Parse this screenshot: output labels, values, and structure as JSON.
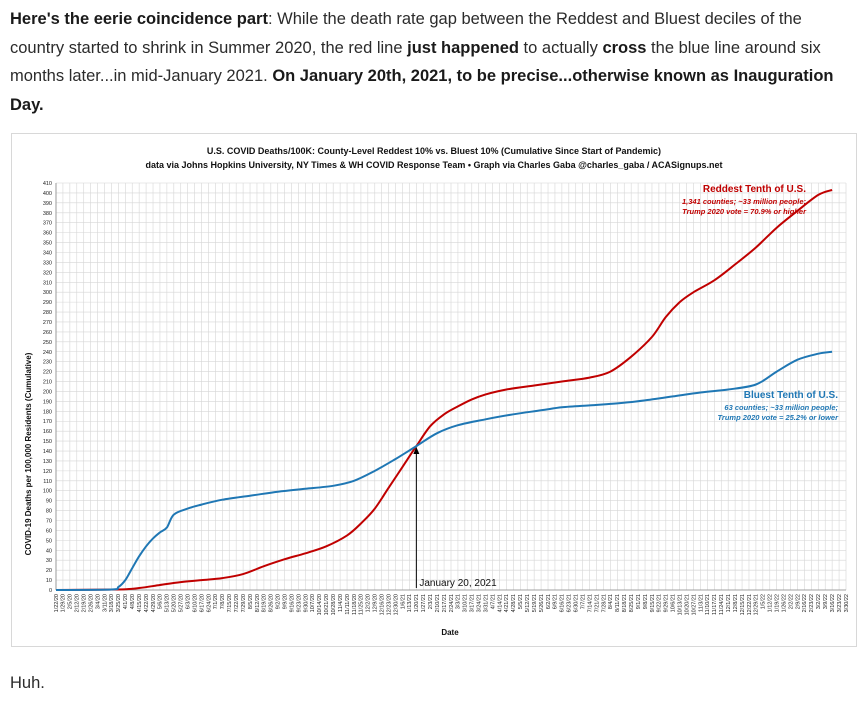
{
  "article": {
    "intro_parts": [
      {
        "text": "Here's the eerie coincidence part",
        "bold": true
      },
      {
        "text": ": While the death rate gap between the Reddest and Bluest deciles of the country started to shrink in Summer 2020, the red line ",
        "bold": false
      },
      {
        "text": "just happened",
        "bold": true
      },
      {
        "text": " to actually ",
        "bold": false
      },
      {
        "text": "cross",
        "bold": true
      },
      {
        "text": " the blue line around six months later...in mid-January 2021. ",
        "bold": false
      },
      {
        "text": "On January 20th, 2021, to be precise...otherwise known as Inauguration Day.",
        "bold": true
      }
    ],
    "outro": "Huh."
  },
  "chart_data": {
    "type": "line",
    "title": "U.S. COVID Deaths/100K: County-Level Reddest 10% vs. Bluest 10% (Cumulative Since Start of Pandemic)",
    "subtitle": "data via Johns Hopkins University, NY Times & WH COVID Response Team • Graph via Charles Gaba @charles_gaba / ACASignups.net",
    "xlabel": "Date",
    "ylabel": "COVID-19 Deaths per 100,000 Residents (Cumulative)",
    "ylim": [
      0,
      410
    ],
    "ytick_step": 10,
    "grid": true,
    "x_ticks": [
      "1/22/20",
      "1/29/20",
      "2/5/20",
      "2/12/20",
      "2/19/20",
      "2/26/20",
      "3/4/20",
      "3/11/20",
      "3/18/20",
      "3/25/20",
      "4/1/20",
      "4/8/20",
      "4/15/20",
      "4/22/20",
      "4/29/20",
      "5/6/20",
      "5/13/20",
      "5/20/20",
      "5/27/20",
      "6/3/20",
      "6/10/20",
      "6/17/20",
      "6/24/20",
      "7/1/20",
      "7/8/20",
      "7/15/20",
      "7/22/20",
      "7/29/20",
      "8/5/20",
      "8/12/20",
      "8/19/20",
      "8/26/20",
      "9/2/20",
      "9/9/20",
      "9/16/20",
      "9/23/20",
      "9/30/20",
      "10/7/20",
      "10/14/20",
      "10/21/20",
      "10/28/20",
      "11/4/20",
      "11/11/20",
      "11/18/20",
      "11/25/20",
      "12/2/20",
      "12/9/20",
      "12/16/20",
      "12/23/20",
      "12/30/20",
      "1/6/21",
      "1/13/21",
      "1/20/21",
      "1/27/21",
      "2/3/21",
      "2/10/21",
      "2/17/21",
      "2/24/21",
      "3/3/21",
      "3/10/21",
      "3/17/21",
      "3/24/21",
      "3/31/21",
      "4/7/21",
      "4/14/21",
      "4/21/21",
      "4/28/21",
      "5/5/21",
      "5/12/21",
      "5/19/21",
      "5/26/21",
      "6/2/21",
      "6/9/21",
      "6/16/21",
      "6/23/21",
      "6/30/21",
      "7/7/21",
      "7/14/21",
      "7/21/21",
      "7/28/21",
      "8/4/21",
      "8/11/21",
      "8/18/21",
      "8/25/21",
      "9/1/21",
      "9/8/21",
      "9/15/21",
      "9/22/21",
      "9/29/21",
      "10/6/21",
      "10/13/21",
      "10/20/21",
      "10/27/21",
      "11/3/21",
      "11/10/21",
      "11/17/21",
      "11/24/21",
      "12/1/21",
      "12/8/21",
      "12/15/21",
      "12/22/21",
      "12/29/21",
      "1/5/22",
      "1/12/22",
      "1/19/22",
      "1/26/22",
      "2/2/22",
      "2/9/22",
      "2/16/22",
      "2/23/22",
      "3/2/22",
      "3/9/22",
      "3/16/22",
      "3/23/22",
      "3/30/22"
    ],
    "series": [
      {
        "name": "Reddest Tenth of U.S.",
        "color": "#c00000",
        "legend_lines": [
          "1,341 counties; ~33 million people;",
          "Trump 2020 vote = 70.9% or higher"
        ],
        "points": [
          [
            "1/22/20",
            0
          ],
          [
            "3/25/20",
            0.5
          ],
          [
            "4/15/20",
            2
          ],
          [
            "5/6/20",
            5
          ],
          [
            "5/27/20",
            8
          ],
          [
            "6/17/20",
            10
          ],
          [
            "7/8/20",
            12
          ],
          [
            "7/29/20",
            16
          ],
          [
            "8/19/20",
            24
          ],
          [
            "9/9/20",
            31
          ],
          [
            "9/30/20",
            37
          ],
          [
            "10/21/20",
            44
          ],
          [
            "11/11/20",
            55
          ],
          [
            "11/25/20",
            67
          ],
          [
            "12/9/20",
            82
          ],
          [
            "12/23/20",
            103
          ],
          [
            "1/6/21",
            124
          ],
          [
            "1/20/21",
            145
          ],
          [
            "2/3/21",
            165
          ],
          [
            "2/17/21",
            177
          ],
          [
            "3/3/21",
            185
          ],
          [
            "3/17/21",
            192
          ],
          [
            "3/31/21",
            197
          ],
          [
            "4/21/21",
            202
          ],
          [
            "5/19/21",
            206
          ],
          [
            "6/16/21",
            210
          ],
          [
            "7/14/21",
            214
          ],
          [
            "8/4/21",
            220
          ],
          [
            "8/25/21",
            235
          ],
          [
            "9/15/21",
            255
          ],
          [
            "9/29/21",
            275
          ],
          [
            "10/13/21",
            290
          ],
          [
            "10/27/21",
            300
          ],
          [
            "11/17/21",
            312
          ],
          [
            "12/8/21",
            328
          ],
          [
            "12/29/21",
            345
          ],
          [
            "1/19/22",
            365
          ],
          [
            "2/9/22",
            382
          ],
          [
            "3/2/22",
            398
          ],
          [
            "3/16/22",
            403
          ]
        ]
      },
      {
        "name": "Bluest Tenth of U.S.",
        "color": "#1f77b4",
        "legend_lines": [
          "63 counties; ~33 million people;",
          "Trump 2020 vote = 25.2% or lower"
        ],
        "points": [
          [
            "1/22/20",
            0
          ],
          [
            "3/18/20",
            0.5
          ],
          [
            "3/25/20",
            3
          ],
          [
            "4/1/20",
            10
          ],
          [
            "4/8/20",
            22
          ],
          [
            "4/15/20",
            34
          ],
          [
            "4/22/20",
            44
          ],
          [
            "4/29/20",
            52
          ],
          [
            "5/6/20",
            58
          ],
          [
            "5/13/20",
            63
          ],
          [
            "5/20/20",
            76
          ],
          [
            "6/3/20",
            82
          ],
          [
            "6/17/20",
            86
          ],
          [
            "7/8/20",
            91
          ],
          [
            "8/5/20",
            95
          ],
          [
            "9/2/20",
            99
          ],
          [
            "9/30/20",
            102
          ],
          [
            "10/28/20",
            105
          ],
          [
            "11/18/20",
            110
          ],
          [
            "12/9/20",
            120
          ],
          [
            "12/30/20",
            132
          ],
          [
            "1/20/21",
            145
          ],
          [
            "2/10/21",
            158
          ],
          [
            "3/3/21",
            166
          ],
          [
            "3/31/21",
            172
          ],
          [
            "4/28/21",
            177
          ],
          [
            "5/26/21",
            181
          ],
          [
            "6/16/21",
            184
          ],
          [
            "7/14/21",
            186
          ],
          [
            "8/11/21",
            188
          ],
          [
            "9/8/21",
            191
          ],
          [
            "10/6/21",
            195
          ],
          [
            "11/3/21",
            199
          ],
          [
            "12/1/21",
            202
          ],
          [
            "12/29/21",
            207
          ],
          [
            "1/19/22",
            220
          ],
          [
            "2/9/22",
            232
          ],
          [
            "3/2/22",
            238
          ],
          [
            "3/16/22",
            240
          ]
        ]
      }
    ],
    "annotation": {
      "label": "January 20, 2021",
      "x": "1/20/21",
      "y": 145
    }
  }
}
